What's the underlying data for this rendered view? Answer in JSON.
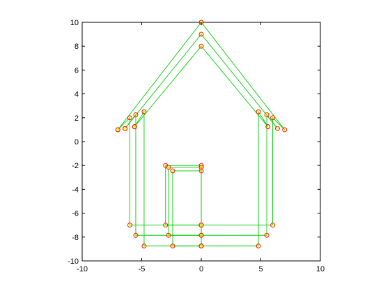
{
  "chart_data": {
    "type": "line",
    "title": "",
    "xlabel": "",
    "ylabel": "",
    "xlim": [
      -10,
      10
    ],
    "ylim": [
      -10,
      10
    ],
    "grid": false,
    "x_ticks": [
      -10,
      -5,
      0,
      5,
      10
    ],
    "y_ticks": [
      -10,
      -8,
      -6,
      -4,
      -2,
      0,
      2,
      4,
      6,
      8,
      10
    ],
    "line_color": "#00cc00",
    "marker_color": "#ff0000",
    "marker_fill": "#ffff00",
    "series": [
      {
        "points": [
          [
            -7,
            1
          ],
          [
            0,
            10
          ],
          [
            7,
            1
          ],
          [
            6,
            2
          ],
          [
            6,
            -7
          ],
          [
            -6,
            -7
          ],
          [
            -6,
            2
          ],
          [
            -7,
            1
          ]
        ],
        "door": [
          [
            0,
            -7
          ],
          [
            -3,
            -7
          ],
          [
            -3,
            -2
          ],
          [
            0,
            -2
          ],
          [
            0,
            -7
          ]
        ]
      },
      {
        "points": [
          [
            -6.4,
            1.1
          ],
          [
            0,
            9
          ],
          [
            6.4,
            1.1
          ],
          [
            5.5,
            2.25
          ],
          [
            5.5,
            -7.85
          ],
          [
            -5.5,
            -7.85
          ],
          [
            -5.5,
            2.25
          ],
          [
            -6.4,
            1.1
          ]
        ],
        "door": [
          [
            0,
            -7.85
          ],
          [
            -2.75,
            -7.85
          ],
          [
            -2.75,
            -2.15
          ],
          [
            0,
            -2.15
          ],
          [
            0,
            -7.85
          ]
        ]
      },
      {
        "points": [
          [
            -5.6,
            1.25
          ],
          [
            0,
            8
          ],
          [
            5.6,
            1.25
          ],
          [
            4.8,
            2.5
          ],
          [
            4.8,
            -8.75
          ],
          [
            -4.8,
            -8.75
          ],
          [
            -4.8,
            2.5
          ],
          [
            -5.6,
            1.25
          ]
        ],
        "door": [
          [
            0,
            -8.75
          ],
          [
            -2.4,
            -8.75
          ],
          [
            -2.4,
            -2.45
          ],
          [
            0,
            -2.45
          ],
          [
            0,
            -8.75
          ]
        ]
      }
    ]
  }
}
